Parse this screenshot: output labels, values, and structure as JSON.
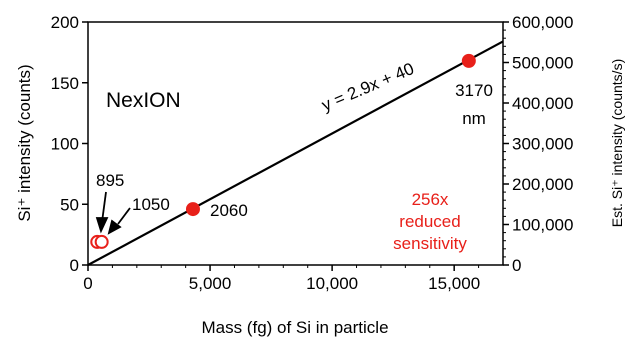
{
  "chart_data": {
    "type": "scatter",
    "title": "",
    "xlabel": "Mass (fg) of Si in particle",
    "ylabel": "Si⁺ intensity (counts)",
    "y2label": "Est. Si⁺ intensity (counts/s)",
    "xlim": [
      0,
      17000
    ],
    "ylim": [
      0,
      200
    ],
    "y2lim": [
      0,
      600000
    ],
    "x_ticks": [
      "0",
      "5,000",
      "10,000",
      "15,000"
    ],
    "y_ticks": [
      "0",
      "50",
      "100",
      "150",
      "200"
    ],
    "y2_ticks": [
      "0",
      "100,000",
      "200,000",
      "300,000",
      "400,000",
      "500,000",
      "600,000"
    ],
    "grid": false,
    "points": [
      {
        "label": "895",
        "x": 380,
        "y": 19,
        "filled": false
      },
      {
        "label": "1050",
        "x": 560,
        "y": 19,
        "filled": false
      },
      {
        "label": "2060",
        "x": 4300,
        "y": 46,
        "filled": true
      },
      {
        "label": "3170 nm",
        "x": 15600,
        "y": 168,
        "filled": true
      }
    ],
    "fit": {
      "slope_per_1000": 2.9,
      "intercept": 40,
      "equation": "y = 2.9x + 40",
      "x_range": [
        0,
        17000
      ]
    },
    "annotations": {
      "instrument": "NexION",
      "label_895": "895",
      "label_1050": "1050",
      "label_2060": "2060",
      "label_3170_line1": "3170",
      "label_3170_line2": "nm",
      "sensitivity_line1": "256x",
      "sensitivity_line2": "reduced",
      "sensitivity_line3": "sensitivity"
    },
    "colors": {
      "points": "#e8201a",
      "sensitivity_text": "#e8201a",
      "line": "#000000",
      "axis": "#000000"
    }
  }
}
